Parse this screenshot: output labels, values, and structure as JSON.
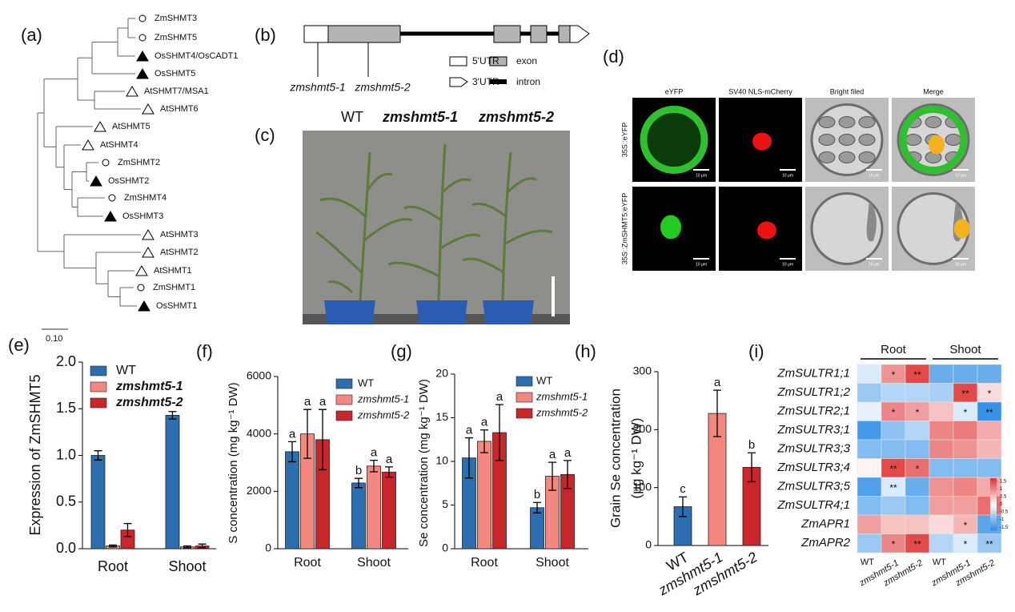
{
  "tree": {
    "panel_label": "(a)",
    "leaves": [
      "ZmSHMT3",
      "ZmSHMT5",
      "OsSHMT4/OsCADT1",
      "OsSHMT5",
      "AtSHMT7/MSA1",
      "AtSHMT6",
      "AtSHMT5",
      "AtSHMT4",
      "ZmSHMT2",
      "OsSHMT2",
      "ZmSHMT4",
      "OsSHMT3",
      "AtSHMT3",
      "AtSHMT2",
      "AtSHMT1",
      "ZmSHMT1",
      "OsSHMT1"
    ],
    "scale_label": "0.10"
  },
  "gene_model": {
    "panel_label": "(b)",
    "alleles": [
      "zmshmt5-1",
      "zmshmt5-2"
    ],
    "legend": [
      "5'UTR",
      "exon",
      "3'UTR",
      "intron"
    ]
  },
  "photo": {
    "panel_label": "(c)",
    "labels": [
      "WT",
      "zmshmt5-1",
      "zmshmt5-2"
    ]
  },
  "microscopy": {
    "panel_label": "(d)",
    "columns": [
      "eYFP",
      "SV40 NLS-mCherry",
      "Bright filed",
      "Merge"
    ],
    "rows": [
      "35S::eYFP",
      "35S::ZmSHMT5:eYFP"
    ],
    "scale_label": "10 μm"
  },
  "chart_data": [
    {
      "type": "bar",
      "panel_label": "(e)",
      "ylabel": "Expression of ZmSHMT5",
      "categories": [
        "Root",
        "Shoot"
      ],
      "series": [
        {
          "name": "WT",
          "color": "#2c6fb0",
          "values": [
            1.0,
            1.43
          ],
          "errors": [
            0.05,
            0.04
          ]
        },
        {
          "name": "zmshmt5-1",
          "color": "#f4877f",
          "values": [
            0.03,
            0.02
          ],
          "errors": [
            0.01,
            0.01
          ]
        },
        {
          "name": "zmshmt5-2",
          "color": "#c9262c",
          "values": [
            0.2,
            0.03
          ],
          "errors": [
            0.07,
            0.02
          ]
        }
      ],
      "ylim": [
        0,
        2
      ],
      "yticks": [
        {
          "value": 0,
          "label": "0.0"
        },
        {
          "value": 0.5,
          "label": "0.5"
        },
        {
          "value": 1,
          "label": "1.0"
        },
        {
          "value": 1.5,
          "label": "1.5"
        },
        {
          "value": 2,
          "label": "2.0"
        }
      ],
      "legend": "upper left"
    },
    {
      "type": "bar",
      "panel_label": "(f)",
      "ylabel": "S concentration (mg kg⁻¹ DW)",
      "categories": [
        "Root",
        "Shoot"
      ],
      "series": [
        {
          "name": "WT",
          "color": "#2c6fb0",
          "values": [
            3380,
            2290
          ],
          "errors": [
            350,
            160
          ],
          "annotations": [
            "a",
            "b"
          ]
        },
        {
          "name": "zmshmt5-1",
          "color": "#f4877f",
          "values": [
            4000,
            2880
          ],
          "errors": [
            850,
            200
          ],
          "annotations": [
            "a",
            "a"
          ]
        },
        {
          "name": "zmshmt5-2",
          "color": "#c9262c",
          "values": [
            3800,
            2670
          ],
          "errors": [
            1050,
            180
          ],
          "annotations": [
            "a",
            "a"
          ]
        }
      ],
      "ylim": [
        0,
        6000
      ],
      "yticks": [
        0,
        2000,
        4000,
        6000
      ],
      "legend": "upper right"
    },
    {
      "type": "bar",
      "panel_label": "(g)",
      "ylabel": "Se concentration (mg kg⁻¹ DW)",
      "categories": [
        "Root",
        "Shoot"
      ],
      "series": [
        {
          "name": "WT",
          "color": "#2c6fb0",
          "values": [
            10.4,
            4.7
          ],
          "errors": [
            2.3,
            0.6
          ],
          "annotations": [
            "a",
            "b"
          ]
        },
        {
          "name": "zmshmt5-1",
          "color": "#f4877f",
          "values": [
            12.3,
            8.3
          ],
          "errors": [
            1.3,
            1.6
          ],
          "annotations": [
            "a",
            "a"
          ]
        },
        {
          "name": "zmshmt5-2",
          "color": "#c9262c",
          "values": [
            13.3,
            8.5
          ],
          "errors": [
            3.2,
            1.6
          ],
          "annotations": [
            "a",
            "a"
          ]
        }
      ],
      "ylim": [
        0,
        20
      ],
      "yticks": [
        0,
        5,
        10,
        15,
        20
      ],
      "legend": "upper right"
    },
    {
      "type": "bar",
      "panel_label": "(h)",
      "ylabel": [
        "Grain Se concentration",
        "(μg kg⁻¹ DW)"
      ],
      "categories": [
        "WT",
        "zmshmt5-1",
        "zmshmt5-2"
      ],
      "values": [
        67,
        228,
        135
      ],
      "errors": [
        17,
        40,
        25
      ],
      "colors": [
        "#2c6fb0",
        "#f4877f",
        "#c9262c"
      ],
      "annotations": [
        "c",
        "a",
        "b"
      ],
      "ylim": [
        0,
        300
      ],
      "yticks": [
        0,
        100,
        200,
        300
      ]
    },
    {
      "type": "heatmap",
      "panel_label": "(i)",
      "groups": [
        "Root",
        "Shoot"
      ],
      "rows": [
        "ZmSULTR1;1",
        "ZmSULTR1;2",
        "ZmSULTR2;1",
        "ZmSULTR3;1",
        "ZmSULTR3;3",
        "ZmSULTR3;4",
        "ZmSULTR3;5",
        "ZmSULTR4;1",
        "ZmAPR1",
        "ZmAPR2"
      ],
      "columns": [
        "WT",
        "zmshmt5-1",
        "zmshmt5-2",
        "WT",
        "zmshmt5-1",
        "zmshmt5-2"
      ],
      "values": [
        [
          -0.3,
          0.9,
          1.5,
          -1.2,
          -1.2,
          -1.2
        ],
        [
          -0.8,
          -0.6,
          -0.6,
          -0.7,
          1.5,
          0.3
        ],
        [
          -0.2,
          1.0,
          0.8,
          0.5,
          -0.3,
          -1.6
        ],
        [
          -1.5,
          -0.9,
          -0.6,
          1.0,
          1.1,
          0.7
        ],
        [
          -1.0,
          -1.0,
          -1.0,
          1.0,
          0.9,
          0.6
        ],
        [
          0.1,
          1.5,
          1.2,
          -1.0,
          -1.0,
          -1.0
        ],
        [
          -1.4,
          -0.3,
          -1.2,
          0.9,
          1.0,
          0.7
        ],
        [
          -1.0,
          -0.8,
          -1.0,
          0.8,
          0.8,
          1.2
        ],
        [
          0.8,
          0.5,
          0.5,
          0.3,
          0.6,
          -1.3
        ],
        [
          -0.8,
          1.0,
          1.5,
          -0.6,
          -0.3,
          -0.8
        ]
      ],
      "annotations": [
        [
          null,
          "*",
          "**",
          null,
          null,
          null
        ],
        [
          null,
          null,
          null,
          null,
          "**",
          "*"
        ],
        [
          null,
          "*",
          "*",
          null,
          "*",
          "**"
        ],
        [
          null,
          null,
          null,
          null,
          null,
          null
        ],
        [
          null,
          null,
          null,
          null,
          null,
          null
        ],
        [
          null,
          "**",
          "*",
          null,
          null,
          null
        ],
        [
          null,
          "**",
          null,
          null,
          null,
          null
        ],
        [
          null,
          null,
          null,
          null,
          null,
          null
        ],
        [
          null,
          null,
          null,
          null,
          "*",
          null
        ],
        [
          null,
          "*",
          "**",
          null,
          "*",
          "**"
        ]
      ],
      "zlim": [
        -1.7,
        1.7
      ],
      "colorbar_ticks": [
        1.5,
        1,
        0.5,
        0,
        -0.5,
        -1,
        -1.5
      ],
      "colors": {
        "low": "#2b8be6",
        "mid": "#ffffff",
        "high": "#e03131"
      }
    }
  ]
}
